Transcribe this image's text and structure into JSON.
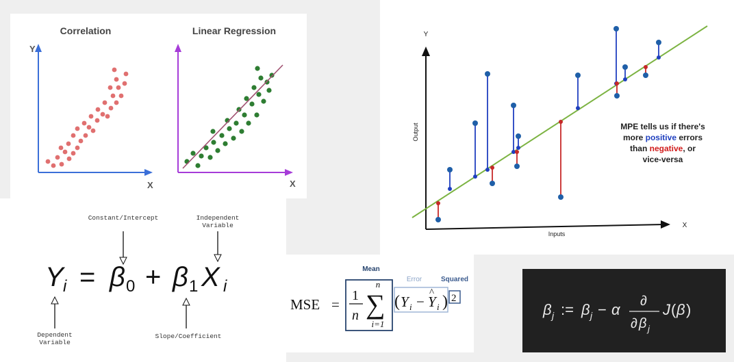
{
  "correlation": {
    "title_left": "Correlation",
    "title_right": "Linear Regression",
    "axis_y": "Y",
    "axis_x": "X",
    "colors": {
      "corr_points": "#e07070",
      "reg_points": "#2e7d32",
      "axis_left": "#3b6fd8",
      "axis_right": "#a63cd8",
      "reg_line": "#a05070"
    }
  },
  "mpe": {
    "y_label": "Y",
    "x_label": "X",
    "output_label": "Output",
    "inputs_label": "Inputs",
    "note_line1": "MPE tells us if there's",
    "note_more": "more ",
    "note_positive": "positive",
    "note_errors": " errors",
    "note_than": "than ",
    "note_negative": "negative",
    "note_or": ", or",
    "note_line4": "vice-versa",
    "colors": {
      "fit_line": "#7cb342",
      "positive": "#1f3fbf",
      "negative": "#c62828",
      "predicted": "#1f5fa8"
    }
  },
  "equation": {
    "constant_label": "Constant/Intercept",
    "independent_label_1": "Independent",
    "independent_label_2": "Variable",
    "dependent_label_1": "Dependent",
    "dependent_label_2": "Variable",
    "slope_label": "Slope/Coefficient"
  },
  "mse": {
    "mean_label": "Mean",
    "error_label": "Error",
    "squared_label": "Squared",
    "lhs": "MSE",
    "sum_top": "n",
    "sum_bottom": "i=1",
    "exponent": "2"
  }
}
